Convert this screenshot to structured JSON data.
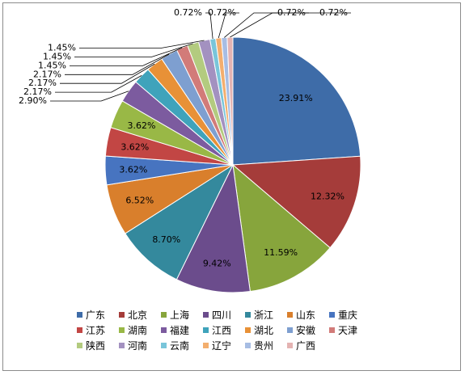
{
  "chart_data": {
    "type": "pie",
    "title": "",
    "legend_position": "bottom",
    "slices": [
      {
        "label": "广东",
        "value": 23.91,
        "display": "23.91%",
        "color": "#3e6ca8"
      },
      {
        "label": "北京",
        "value": 12.32,
        "display": "12.32%",
        "color": "#a53c3a"
      },
      {
        "label": "上海",
        "value": 11.59,
        "display": "11.59%",
        "color": "#87a53c"
      },
      {
        "label": "四川",
        "value": 9.42,
        "display": "9.42%",
        "color": "#6b4c8c"
      },
      {
        "label": "浙江",
        "value": 8.7,
        "display": "8.70%",
        "color": "#34899d"
      },
      {
        "label": "山东",
        "value": 6.52,
        "display": "6.52%",
        "color": "#d97f2c"
      },
      {
        "label": "重庆",
        "value": 3.62,
        "display": "3.62%",
        "color": "#4774c0"
      },
      {
        "label": "江苏",
        "value": 3.62,
        "display": "3.62%",
        "color": "#c24644"
      },
      {
        "label": "湖南",
        "value": 3.62,
        "display": "3.62%",
        "color": "#99b846"
      },
      {
        "label": "福建",
        "value": 2.9,
        "display": "2.90%",
        "color": "#7c5b9f"
      },
      {
        "label": "江西",
        "value": 2.17,
        "display": "2.17%",
        "color": "#3fa3bb"
      },
      {
        "label": "湖北",
        "value": 2.17,
        "display": "2.17%",
        "color": "#e89137"
      },
      {
        "label": "安徽",
        "value": 2.17,
        "display": "2.17%",
        "color": "#7e9fd0"
      },
      {
        "label": "天津",
        "value": 1.45,
        "display": "1.45%",
        "color": "#d27b79"
      },
      {
        "label": "陕西",
        "value": 1.45,
        "display": "1.45%",
        "color": "#b3cb7f"
      },
      {
        "label": "河南",
        "value": 1.45,
        "display": "1.45%",
        "color": "#a391c0"
      },
      {
        "label": "云南",
        "value": 0.72,
        "display": "0.72%",
        "color": "#79c5da"
      },
      {
        "label": "辽宁",
        "value": 0.72,
        "display": "0.72%",
        "color": "#f3ae6e"
      },
      {
        "label": "贵州",
        "value": 0.72,
        "display": "0.72%",
        "color": "#a7bde3"
      },
      {
        "label": "广西",
        "value": 0.72,
        "display": "0.72%",
        "color": "#e4b3b2"
      }
    ]
  }
}
